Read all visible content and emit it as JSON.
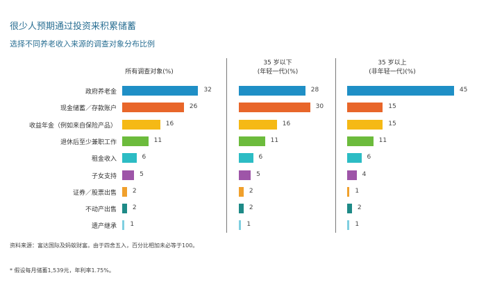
{
  "title": "很少人预期通过投资来积累储蓄",
  "subtitle": "选择不同养老收入来源的调查对象分布比例",
  "chart_data": {
    "type": "bar",
    "orientation": "horizontal",
    "categories": [
      "政府养老金",
      "现金储蓄／存款账户",
      "收益年金（例如来自保险产品）",
      "退休后至少兼职工作",
      "租金收入",
      "子女支持",
      "证券／股票出售",
      "不动产出售",
      "遗产继承"
    ],
    "colors": [
      "#1f8fc6",
      "#e8662a",
      "#f5b915",
      "#6cbb3c",
      "#2cbcc4",
      "#9e55a8",
      "#f0a02c",
      "#1e8a87",
      "#7fcfe0"
    ],
    "panels": [
      {
        "header": [
          "所有调查对象(%)"
        ],
        "values": [
          32,
          26,
          16,
          11,
          6,
          5,
          2,
          2,
          1
        ]
      },
      {
        "header": [
          "35 岁以下",
          "(年轻一代)(%)"
        ],
        "values": [
          28,
          30,
          16,
          11,
          6,
          5,
          2,
          2,
          1
        ]
      },
      {
        "header": [
          "35 岁以上",
          "(非年轻一代)(%)"
        ],
        "values": [
          45,
          15,
          15,
          11,
          6,
          4,
          1,
          2,
          1
        ]
      }
    ]
  },
  "footnotes": {
    "source": "资料来源：富达国际及蚂蚁财富。由于四舍五入，百分比相加未必等于100。",
    "note": "* 假设每月储蓄1,539元，年利率1.75%。"
  }
}
